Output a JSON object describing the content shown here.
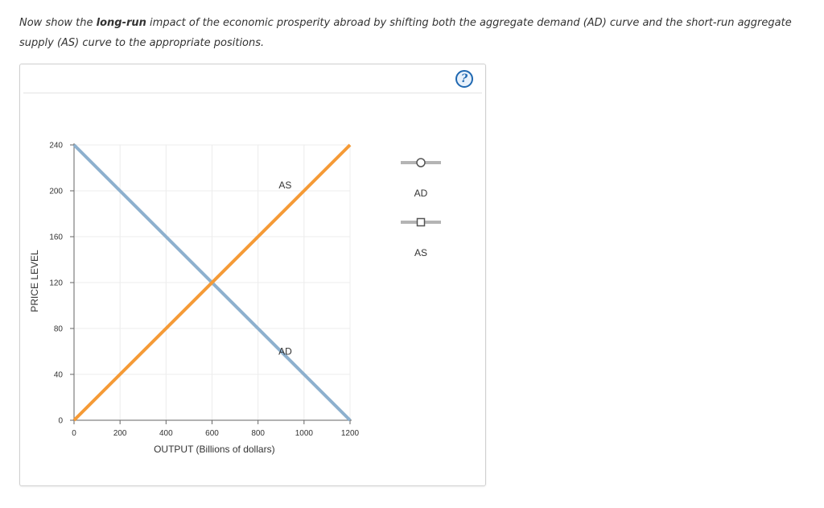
{
  "instructions": {
    "part1": "Now show the ",
    "bold": "long-run",
    "part2": " impact of the economic prosperity abroad by shifting both the aggregate demand (AD) curve and the short-run aggregate supply (AS) curve to the appropriate positions."
  },
  "help": {
    "label": "?"
  },
  "palette": {
    "ad_color": "#8db0ce",
    "as_color": "#f59a36",
    "handle_color": "#b4b4b4",
    "axis_color": "#666666",
    "grid_color": "#ececec"
  },
  "legend": {
    "items": [
      {
        "label": "AD",
        "marker": "circle-handle-icon"
      },
      {
        "label": "AS",
        "marker": "square-handle-icon"
      }
    ]
  },
  "chart_data": {
    "type": "line",
    "xlabel": "OUTPUT (Billions of dollars)",
    "ylabel": "PRICE LEVEL",
    "xlim": [
      0,
      1200
    ],
    "ylim": [
      0,
      240
    ],
    "xticks": [
      0,
      200,
      400,
      600,
      800,
      1000,
      1200
    ],
    "yticks": [
      0,
      40,
      80,
      120,
      160,
      200,
      240
    ],
    "grid": true,
    "series": [
      {
        "name": "AD",
        "x": [
          0,
          1200
        ],
        "y": [
          240,
          0
        ],
        "label_at": [
          960,
          60
        ]
      },
      {
        "name": "AS",
        "x": [
          0,
          1200
        ],
        "y": [
          0,
          240
        ],
        "label_at": [
          960,
          200
        ]
      }
    ],
    "intersection": {
      "x": 600,
      "y": 120
    }
  }
}
